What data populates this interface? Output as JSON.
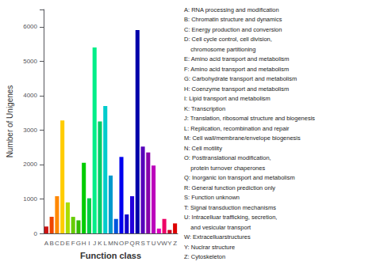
{
  "chart_data": {
    "type": "bar",
    "categories": [
      "A",
      "B",
      "C",
      "D",
      "E",
      "F",
      "G",
      "H",
      "I",
      "J",
      "K",
      "L",
      "M",
      "N",
      "O",
      "P",
      "Q",
      "R",
      "S",
      "T",
      "U",
      "V",
      "W",
      "Y",
      "Z"
    ],
    "values": [
      200,
      480,
      1080,
      3280,
      900,
      480,
      380,
      2050,
      1020,
      5400,
      3250,
      3700,
      1680,
      420,
      2220,
      550,
      1080,
      5900,
      2520,
      2350,
      1970,
      140,
      420,
      100,
      290
    ],
    "colors": [
      "#cc1111",
      "#ee4400",
      "#ff8800",
      "#ffcc00",
      "#aadd00",
      "#66cc00",
      "#33bb00",
      "#00cc00",
      "#00cc44",
      "#00ee88",
      "#00cc66",
      "#00cccc",
      "#0099cc",
      "#0055dd",
      "#0000ee",
      "#1100cc",
      "#2200dd",
      "#0000aa",
      "#5500bb",
      "#8800aa",
      "#bb00bb",
      "#dd00bb",
      "#ee0066",
      "#cc0022",
      "#dd0000"
    ],
    "xlabel": "Function class",
    "ylabel": "Number of Unigenes",
    "ylim": [
      0,
      6500
    ],
    "yticks": [
      0,
      1000,
      2000,
      3000,
      4000,
      5000,
      6000
    ],
    "grid": false,
    "annotations": [
      "A: RNA processing and modification",
      "B: Chromatin structure and dynamics",
      "C: Energy production and conversion",
      "D: Cell cycle control, cell division,",
      "    chromosome partitioning",
      "E: Amino acid transport and metabolism",
      "F: Amino acid transport and metabolism",
      "G: Carbohydrate transport and metabolism",
      "H: Coenzyme transport and metabolism",
      "I: Lipid transport and metabolism",
      "K: Transcription",
      "J: Translation, ribosomal structure and biogenesis",
      "L: Replication, recombination and repair",
      "M: Cell wall/membrane/envelope biogenesis",
      "N: Cell motility",
      "O: Posttranslational modification,",
      "    protein turnover chaperones",
      "Q: Inorganic ion transport and metabolism",
      "R: General function prediction only",
      "S: Function unknown",
      "T: Signal transduction mechanisms",
      "U: Intracelluar trafficking, secretion,",
      "    and vesicular transport",
      "W: Extracelluarstructures",
      "Y: Nuclrar structure",
      "Z: Cytoskeleton"
    ]
  }
}
